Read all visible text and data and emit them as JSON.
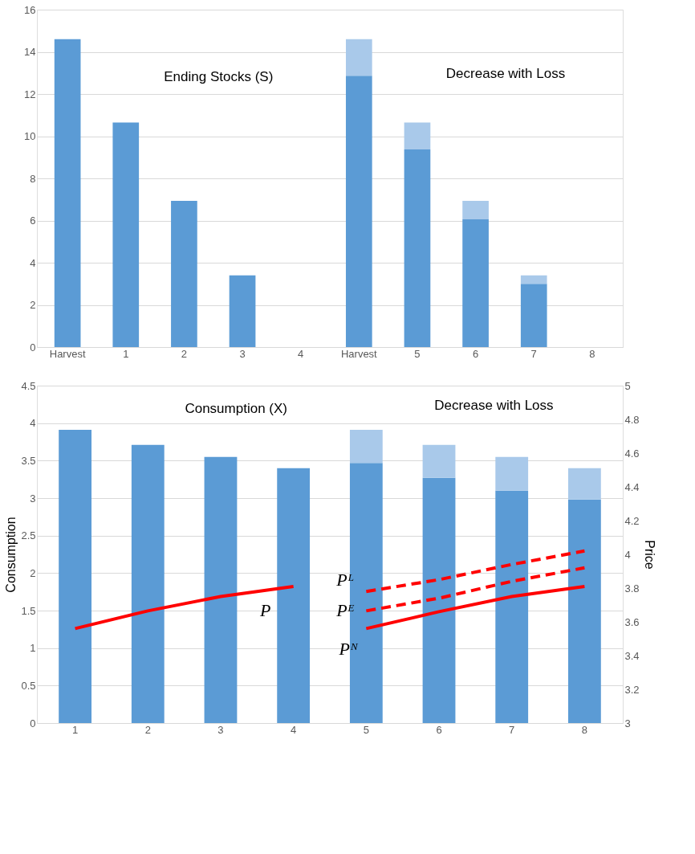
{
  "chart_data": [
    {
      "type": "bar",
      "stacked": true,
      "categories": [
        "Harvest",
        "1",
        "2",
        "3",
        "4",
        "Harvest",
        "5",
        "6",
        "7",
        "8"
      ],
      "series": [
        {
          "color": "#5b9bd5",
          "values": [
            14.6,
            10.65,
            6.93,
            3.4,
            0,
            12.87,
            9.37,
            6.06,
            3.0,
            0
          ]
        },
        {
          "color": "#a9c9ea",
          "values": [
            0,
            0,
            0,
            0,
            0,
            1.73,
            1.28,
            0.87,
            0.4,
            0
          ]
        }
      ],
      "ylim": [
        0,
        16
      ],
      "yticks": [
        0,
        2,
        4,
        6,
        8,
        10,
        12,
        14,
        16
      ],
      "grid": "y",
      "annotations": [
        "Ending Stocks (S)",
        "Decrease with Loss"
      ]
    },
    {
      "type": "bar",
      "stacked": true,
      "categories": [
        "1",
        "2",
        "3",
        "4",
        "5",
        "6",
        "7",
        "8"
      ],
      "ylabel": "Consumption",
      "y2label": "Price",
      "series": [
        {
          "color": "#5b9bd5",
          "values": [
            3.91,
            3.71,
            3.55,
            3.4,
            3.47,
            3.27,
            3.1,
            2.98
          ]
        },
        {
          "color": "#a9c9ea",
          "values": [
            0,
            0,
            0,
            0,
            0.44,
            0.44,
            0.45,
            0.42
          ]
        },
        {
          "type": "line",
          "axis": "y2",
          "name": "P",
          "color": "#ff0000",
          "line_style": "solid",
          "values": [
            3.56,
            3.665,
            3.75,
            3.81,
            null,
            null,
            null,
            null
          ]
        },
        {
          "type": "line",
          "axis": "y2",
          "name": "Pᴺ",
          "color": "#ff0000",
          "line_style": "solid",
          "values": [
            null,
            null,
            null,
            null,
            3.56,
            3.66,
            3.75,
            3.81
          ]
        },
        {
          "type": "line",
          "axis": "y2",
          "name": "Pᴱ",
          "color": "#ff0000",
          "line_style": "dashed",
          "values": [
            null,
            null,
            null,
            null,
            3.665,
            3.74,
            3.84,
            3.92
          ]
        },
        {
          "type": "line",
          "axis": "y2",
          "name": "Pᴸ",
          "color": "#ff0000",
          "line_style": "dashed",
          "values": [
            null,
            null,
            null,
            null,
            3.78,
            3.85,
            3.94,
            4.02
          ]
        }
      ],
      "ylim": [
        0,
        4.5
      ],
      "yticks": [
        0,
        0.5,
        1,
        1.5,
        2,
        2.5,
        3,
        3.5,
        4,
        4.5
      ],
      "y2lim": [
        3,
        5
      ],
      "y2ticks": [
        3,
        3.2,
        3.4,
        3.6,
        3.8,
        4,
        4.2,
        4.4,
        4.6,
        4.8,
        5
      ],
      "grid": "y",
      "annotations": [
        "Consumption (X)",
        "Decrease with Loss"
      ]
    }
  ]
}
